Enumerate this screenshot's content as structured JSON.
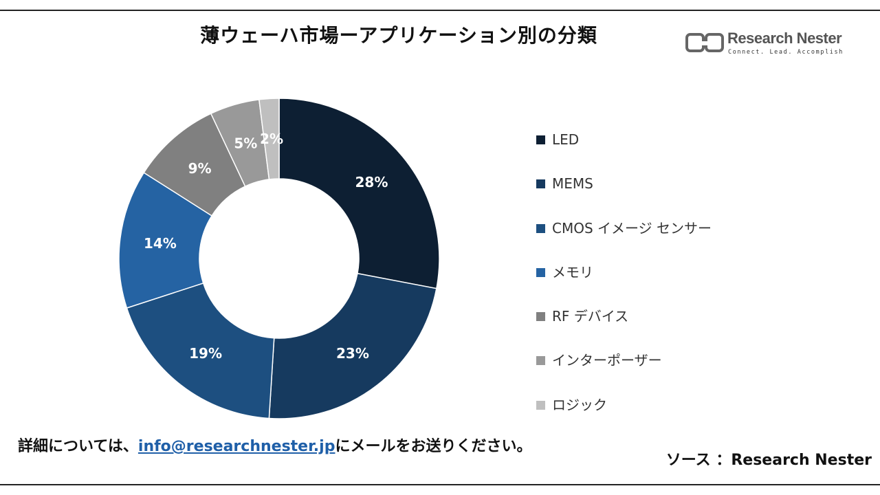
{
  "title": "薄ウェーハ市場ーアプリケーション別の分類",
  "logo": {
    "name": "Research Nester",
    "tagline": "Connect. Lead. Accomplish"
  },
  "chart_data": {
    "type": "pie",
    "donut": true,
    "title": "薄ウェーハ市場ーアプリケーション別の分類",
    "legend_position": "right",
    "slices": [
      {
        "label": "LED",
        "value": 28,
        "display": "28%",
        "color": "#0d1f33"
      },
      {
        "label": "MEMS",
        "value": 23,
        "display": "23%",
        "color": "#163a5f"
      },
      {
        "label": "CMOS イメージ センサー",
        "value": 19,
        "display": "19%",
        "color": "#1d4f80"
      },
      {
        "label": "メモリ",
        "value": 14,
        "display": "14%",
        "color": "#2563a3"
      },
      {
        "label": "RF デバイス",
        "value": 9,
        "display": "9%",
        "color": "#808080"
      },
      {
        "label": "インターポーザー",
        "value": 5,
        "display": "5%",
        "color": "#999999"
      },
      {
        "label": "ロジック",
        "value": 2,
        "display": "2%",
        "color": "#bfbfbf"
      }
    ]
  },
  "footer": {
    "prefix": "詳細については、",
    "email": "info@researchnester.jp",
    "suffix": "にメールをお送りください。"
  },
  "source": "ソース ：Research Nester"
}
